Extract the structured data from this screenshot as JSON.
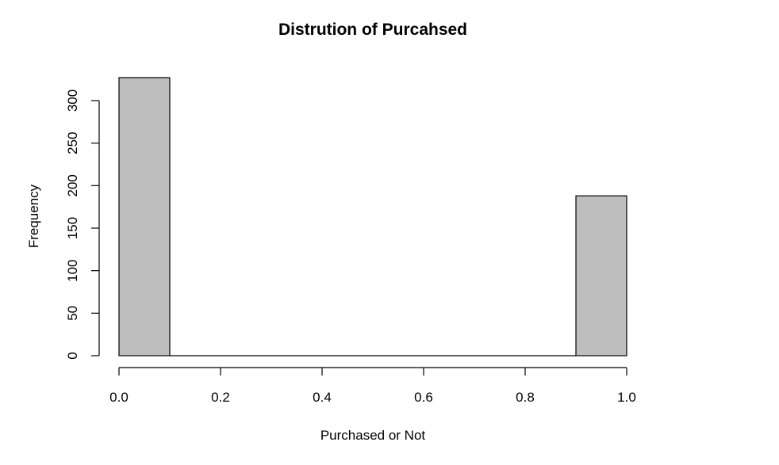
{
  "chart_data": {
    "type": "bar",
    "title": "Distrution of Purcahsed",
    "xlabel": "Purchased or Not",
    "ylabel": "Frequency",
    "bins": [
      {
        "start": 0.0,
        "end": 0.1,
        "count": 327
      },
      {
        "start": 0.1,
        "end": 0.2,
        "count": 0
      },
      {
        "start": 0.2,
        "end": 0.3,
        "count": 0
      },
      {
        "start": 0.3,
        "end": 0.4,
        "count": 0
      },
      {
        "start": 0.4,
        "end": 0.5,
        "count": 0
      },
      {
        "start": 0.5,
        "end": 0.6,
        "count": 0
      },
      {
        "start": 0.6,
        "end": 0.7,
        "count": 0
      },
      {
        "start": 0.7,
        "end": 0.8,
        "count": 0
      },
      {
        "start": 0.8,
        "end": 0.9,
        "count": 0
      },
      {
        "start": 0.9,
        "end": 1.0,
        "count": 188
      }
    ],
    "xlim": [
      0,
      1
    ],
    "ylim": [
      0,
      327
    ],
    "x_ticks": [
      0.0,
      0.2,
      0.4,
      0.6,
      0.8,
      1.0
    ],
    "x_tick_labels": [
      "0.0",
      "0.2",
      "0.4",
      "0.6",
      "0.8",
      "1.0"
    ],
    "y_ticks": [
      0,
      50,
      100,
      150,
      200,
      250,
      300
    ],
    "y_tick_labels": [
      "0",
      "50",
      "100",
      "150",
      "200",
      "250",
      "300"
    ],
    "bar_color": "#bebebe",
    "grid": false
  }
}
